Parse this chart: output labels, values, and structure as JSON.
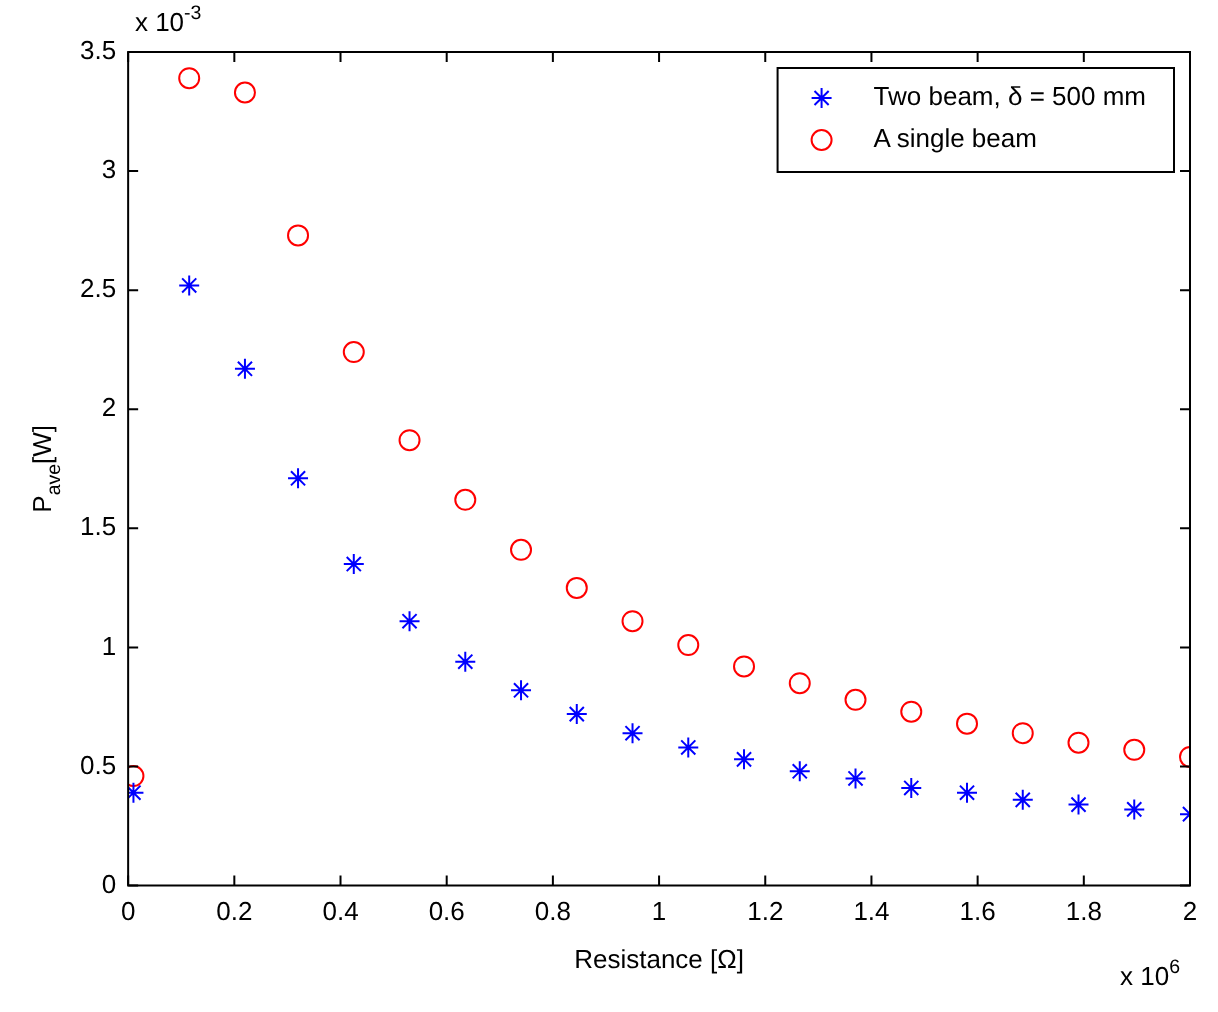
{
  "chart_data": {
    "type": "scatter",
    "xlabel": "Resistance [Ω]",
    "ylabel": "P$_{ave}$[W]",
    "annotations": [
      "x 10$^{-3}$",
      "x 10$^{6}$"
    ],
    "x": [
      0.01,
      0.115,
      0.22,
      0.32,
      0.425,
      0.53,
      0.635,
      0.74,
      0.845,
      0.95,
      1.055,
      1.16,
      1.265,
      1.37,
      1.475,
      1.58,
      1.685,
      1.79,
      1.895,
      2.0
    ],
    "series": [
      {
        "name": "Two beam, δ = 500 mm",
        "color": "#0000ff",
        "marker": "cross",
        "values": [
          0.39,
          2.52,
          2.17,
          1.71,
          1.35,
          1.11,
          0.94,
          0.82,
          0.72,
          0.64,
          0.58,
          0.53,
          0.48,
          0.45,
          0.41,
          0.39,
          0.36,
          0.34,
          0.32,
          0.3
        ]
      },
      {
        "name": "A single beam",
        "color": "#ff0000",
        "marker": "circle",
        "values": [
          0.46,
          3.39,
          3.33,
          2.73,
          2.24,
          1.87,
          1.62,
          1.41,
          1.25,
          1.11,
          1.01,
          0.92,
          0.85,
          0.78,
          0.73,
          0.68,
          0.64,
          0.6,
          0.57,
          0.54
        ]
      }
    ],
    "xlim": [
      0,
      2
    ],
    "xticks": [
      0,
      0.2,
      0.4,
      0.6,
      0.8,
      1,
      1.2,
      1.4,
      1.6,
      1.8,
      2
    ],
    "ylim": [
      0,
      3.5
    ],
    "yticks": [
      0,
      0.5,
      1,
      1.5,
      2,
      2.5,
      3,
      3.5
    ],
    "grid": false,
    "legend": "top right"
  }
}
